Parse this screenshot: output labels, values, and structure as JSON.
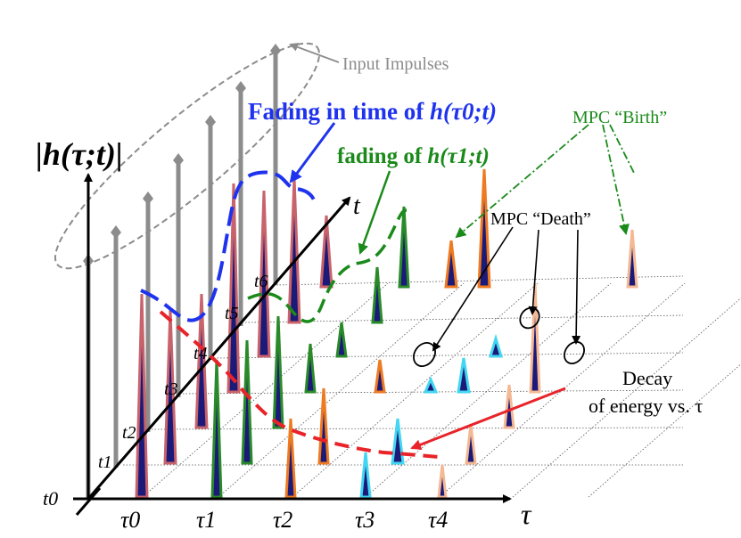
{
  "labels": {
    "y_axis": "|h(τ;t)|",
    "t_axis": "t",
    "tau_axis": "τ",
    "origin": "t0",
    "t_ticks": [
      "t0",
      "t1",
      "t2",
      "t3",
      "t4",
      "t5",
      "t6"
    ],
    "tau_ticks": [
      "τ0",
      "τ1",
      "τ2",
      "τ3",
      "τ4"
    ],
    "input_impulses": "Input Impulses",
    "fading_time_prefix": "Fading in time of ",
    "fading_time_func": "h(τ0;t)",
    "fading_tau1_prefix": "fading of ",
    "fading_tau1_func": "h(τ1;t)",
    "mpc_birth": "MPC “Birth”",
    "mpc_death": "MPC “Death”",
    "decay_line1": "Decay",
    "decay_line2": "of energy vs. τ"
  },
  "colors": {
    "blue": "#1f33ee",
    "green": "#1a8a1a",
    "red": "#e8232a",
    "gray": "#8c8c8c",
    "navy": "#1b1a78",
    "spike_red_edge": "#c8636c",
    "spike_green_edge": "#2a8a2a",
    "spike_orange_edge": "#ee7a22",
    "spike_peach_edge": "#f4b894",
    "spike_cyan_edge": "#43d6f2"
  },
  "icons": [
    "impulse-arrow-icon",
    "multipath-spike-icon",
    "mpc-death-ellipse-icon"
  ]
}
